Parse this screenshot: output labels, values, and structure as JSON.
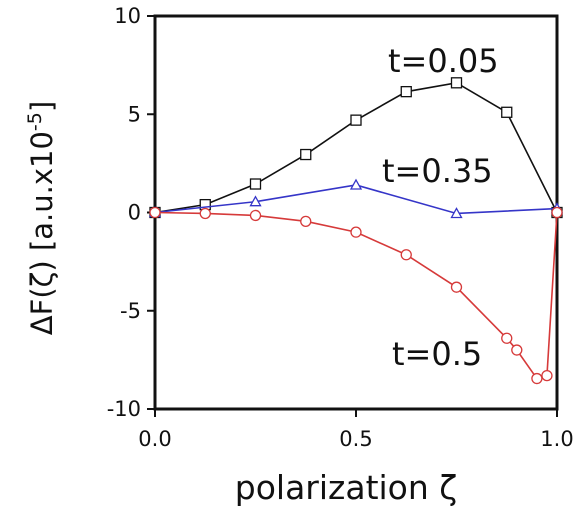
{
  "chart_data": {
    "type": "line",
    "xlabel": "polarization  ζ",
    "ylabel_main": "ΔF(ζ) [a.u.x10",
    "ylabel_exp": "-5",
    "ylabel_close": "]",
    "xlim": [
      0,
      1
    ],
    "ylim": [
      -10,
      10
    ],
    "x_ticks": [
      "0.0",
      "0.5",
      "1.0"
    ],
    "x_tick_values": [
      0,
      0.5,
      1
    ],
    "y_ticks": [
      "10",
      "5",
      "0",
      "-5",
      "-10"
    ],
    "y_tick_values": [
      10,
      5,
      0,
      -5,
      -10
    ],
    "grid": false,
    "series": [
      {
        "name": "t=0.05",
        "marker": "square",
        "color": "#111111",
        "x": [
          0,
          0.125,
          0.25,
          0.375,
          0.5,
          0.625,
          0.75,
          0.875,
          1.0
        ],
        "y": [
          0,
          0.4,
          1.45,
          2.95,
          4.7,
          6.15,
          6.6,
          5.1,
          0
        ]
      },
      {
        "name": "t=0.35",
        "marker": "triangle",
        "color": "#3535c8",
        "x": [
          0,
          0.25,
          0.5,
          0.75,
          1.0
        ],
        "y": [
          0,
          0.55,
          1.4,
          -0.05,
          0.2
        ]
      },
      {
        "name": "t=0.5",
        "marker": "circle",
        "color": "#d63a3a",
        "x": [
          0,
          0.125,
          0.25,
          0.375,
          0.5,
          0.625,
          0.75,
          0.875,
          0.9,
          0.95,
          0.975,
          1.0
        ],
        "y": [
          0,
          -0.05,
          -0.15,
          -0.45,
          -1.0,
          -2.15,
          -3.8,
          -6.4,
          -7.0,
          -8.45,
          -8.3,
          0
        ]
      }
    ]
  }
}
